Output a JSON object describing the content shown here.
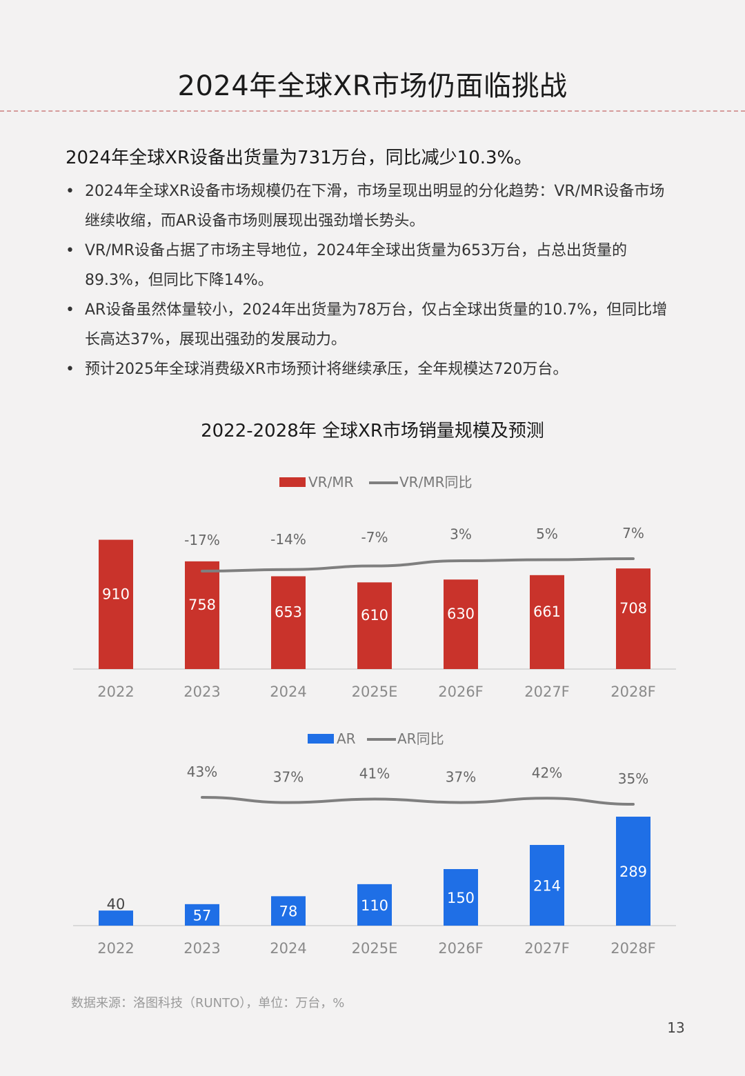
{
  "header": {
    "title": "2024年全球XR市场仍面临挑战"
  },
  "summary": {
    "heading": "2024年全球XR设备出货量为731万台，同比减少10.3%。",
    "bullets": [
      "2024年全球XR设备市场规模仍在下滑，市场呈现出明显的分化趋势：VR/MR设备市场继续收缩，而AR设备市场则展现出强劲增长势头。",
      "VR/MR设备占据了市场主导地位，2024年全球出货量为653万台，占总出货量的89.3%，但同比下降14%。",
      "AR设备虽然体量较小，2024年出货量为78万台，仅占全球出货量的10.7%，但同比增长高达37%，展现出强劲的发展动力。",
      "预计2025年全球消费级XR市场预计将继续承压，全年规模达720万台。"
    ]
  },
  "chart_title": "2022-2028年 全球XR市场销量规模及预测",
  "chart_data": [
    {
      "type": "bar",
      "categories": [
        "2022",
        "2023",
        "2024",
        "2025E",
        "2026F",
        "2027F",
        "2028F"
      ],
      "series": [
        {
          "name": "VR/MR",
          "type": "bar",
          "color": "#c9332b",
          "values": [
            910,
            758,
            653,
            610,
            630,
            661,
            708
          ]
        },
        {
          "name": "VR/MR同比",
          "type": "line",
          "color": "#7f7f7f",
          "values": [
            null,
            -17,
            -14,
            -7,
            3,
            5,
            7
          ],
          "labels": [
            "",
            "-17%",
            "-14%",
            "-7%",
            "3%",
            "5%",
            "7%"
          ]
        }
      ],
      "ylim": [
        0,
        1000
      ],
      "legend": "top-center",
      "grid": false
    },
    {
      "type": "bar",
      "categories": [
        "2022",
        "2023",
        "2024",
        "2025E",
        "2026F",
        "2027F",
        "2028F"
      ],
      "series": [
        {
          "name": "AR",
          "type": "bar",
          "color": "#1f6fe6",
          "values": [
            40,
            57,
            78,
            110,
            150,
            214,
            289
          ]
        },
        {
          "name": "AR同比",
          "type": "line",
          "color": "#7f7f7f",
          "values": [
            null,
            43,
            37,
            41,
            37,
            42,
            35
          ],
          "labels": [
            "",
            "43%",
            "37%",
            "41%",
            "37%",
            "42%",
            "35%"
          ]
        }
      ],
      "ylim": [
        0,
        300
      ],
      "legend": "top-center",
      "grid": false
    }
  ],
  "footer": {
    "source": "数据来源：洛图科技（RUNTO），单位：万台，%",
    "page_number": "13"
  }
}
